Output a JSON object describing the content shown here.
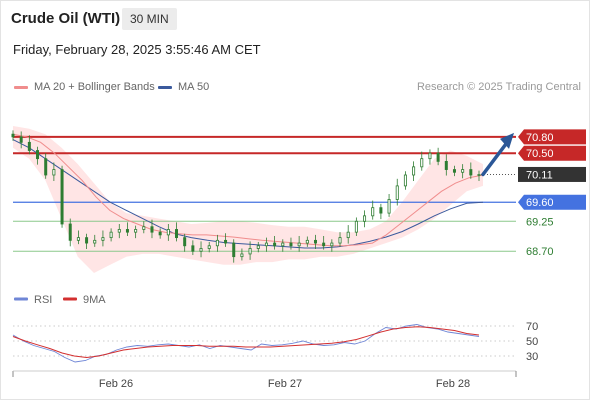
{
  "header": {
    "title": "Crude Oil (WTI)",
    "timeframe": "30 MIN",
    "datetime": "Friday, February 28, 2025 3:55:46 AM CET"
  },
  "legend": {
    "ma20_label": "MA 20 + Bollinger Bands",
    "ma50_label": "MA 50",
    "research": "Research © 2025 Trading Central"
  },
  "rsi_legend": {
    "rsi_label": "RSI",
    "ma_label": "9MA"
  },
  "colors": {
    "ma20": "#f08d8d",
    "ma50": "#3b5a9d",
    "band_fill": "#ffe0e0",
    "candle": "#2e7d32",
    "resistance": "#c62828",
    "pivot": "#4472e0",
    "support": "#8bc88b",
    "last_price_bg": "#333333",
    "arrow": "#2b5797",
    "rsi": "#6f86d6",
    "rsi_ma": "#d32f2f"
  },
  "chart_data": {
    "type": "candlestick",
    "x_tick_labels": [
      "Feb 26",
      "Feb 27",
      "Feb 28"
    ],
    "y_range": [
      68.3,
      71.0
    ],
    "levels": [
      {
        "name": "resistance-2",
        "value": 70.8,
        "label": "70.80",
        "kind": "resistance"
      },
      {
        "name": "resistance-1",
        "value": 70.5,
        "label": "70.50",
        "kind": "resistance"
      },
      {
        "name": "last-price",
        "value": 70.11,
        "label": "70.11",
        "kind": "last"
      },
      {
        "name": "pivot",
        "value": 69.6,
        "label": "69.60",
        "kind": "pivot"
      },
      {
        "name": "support-1",
        "value": 69.25,
        "label": "69.25",
        "kind": "support"
      },
      {
        "name": "support-2",
        "value": 68.7,
        "label": "68.70",
        "kind": "support"
      }
    ],
    "close_series": [
      70.8,
      70.7,
      70.55,
      70.4,
      70.1,
      70.2,
      69.2,
      68.9,
      68.95,
      68.85,
      68.9,
      68.95,
      69.05,
      69.1,
      69.05,
      69.1,
      69.15,
      69.05,
      69.0,
      69.1,
      68.95,
      68.8,
      68.7,
      68.75,
      68.8,
      68.9,
      68.85,
      68.6,
      68.65,
      68.75,
      68.8,
      68.85,
      68.8,
      68.85,
      68.8,
      68.85,
      68.9,
      68.85,
      68.8,
      68.85,
      68.95,
      69.05,
      69.25,
      69.35,
      69.5,
      69.4,
      69.65,
      69.9,
      70.1,
      70.25,
      70.4,
      70.5,
      70.35,
      70.2,
      70.15,
      70.2,
      70.1,
      70.11
    ],
    "ma20_series": [
      70.85,
      70.8,
      70.7,
      70.5,
      70.25,
      70.0,
      69.7,
      69.45,
      69.3,
      69.2,
      69.1,
      69.05,
      69.02,
      69.0,
      69.0,
      68.98,
      68.96,
      68.93,
      68.9,
      68.88,
      68.86,
      68.84,
      68.82,
      68.8,
      68.8,
      68.82,
      68.85,
      69.0,
      69.2,
      69.4,
      69.6,
      69.8,
      69.95,
      70.05,
      70.1
    ],
    "ma50_series": [
      70.75,
      70.6,
      70.4,
      70.2,
      70.0,
      69.8,
      69.6,
      69.45,
      69.3,
      69.15,
      69.02,
      68.95,
      68.9,
      68.86,
      68.84,
      68.82,
      68.8,
      68.78,
      68.76,
      68.76,
      68.78,
      68.82,
      68.88,
      68.96,
      69.06,
      69.2,
      69.35,
      69.48,
      69.58,
      69.6
    ],
    "band_upper": [
      71.0,
      70.95,
      70.85,
      70.6,
      70.3,
      69.95,
      69.6,
      69.4,
      69.35,
      69.3,
      69.25,
      69.2,
      69.22,
      69.25,
      69.25,
      69.22,
      69.18,
      69.15,
      69.15,
      69.1,
      69.05,
      69.05,
      69.1,
      69.25,
      69.6,
      70.0,
      70.4,
      70.55,
      70.45,
      70.3
    ],
    "band_lower": [
      70.6,
      70.4,
      70.0,
      69.3,
      68.6,
      68.3,
      68.45,
      68.6,
      68.65,
      68.65,
      68.6,
      68.55,
      68.5,
      68.45,
      68.45,
      68.5,
      68.5,
      68.55,
      68.55,
      68.6,
      68.6,
      68.65,
      68.75,
      68.85,
      68.95,
      69.1,
      69.3,
      69.55,
      69.8,
      69.9
    ],
    "rsi": {
      "y_range": [
        10,
        90
      ],
      "tick_labels": [
        "70",
        "50",
        "30"
      ],
      "tick_values": [
        70,
        50,
        30
      ],
      "rsi_series": [
        58,
        50,
        44,
        40,
        36,
        28,
        22,
        24,
        30,
        32,
        38,
        42,
        44,
        43,
        45,
        46,
        44,
        42,
        45,
        40,
        44,
        42,
        40,
        38,
        46,
        44,
        45,
        47,
        50,
        46,
        44,
        45,
        48,
        46,
        50,
        60,
        68,
        66,
        70,
        72,
        68,
        66,
        62,
        60,
        58,
        56
      ],
      "ma_series": [
        56,
        50,
        45,
        40,
        34,
        30,
        28,
        30,
        34,
        38,
        40,
        42,
        43,
        44,
        44,
        44,
        43,
        43,
        43,
        42,
        42,
        42,
        43,
        44,
        45,
        46,
        47,
        49,
        52,
        57,
        62,
        66,
        68,
        69,
        68,
        66,
        64,
        60,
        58
      ]
    }
  }
}
